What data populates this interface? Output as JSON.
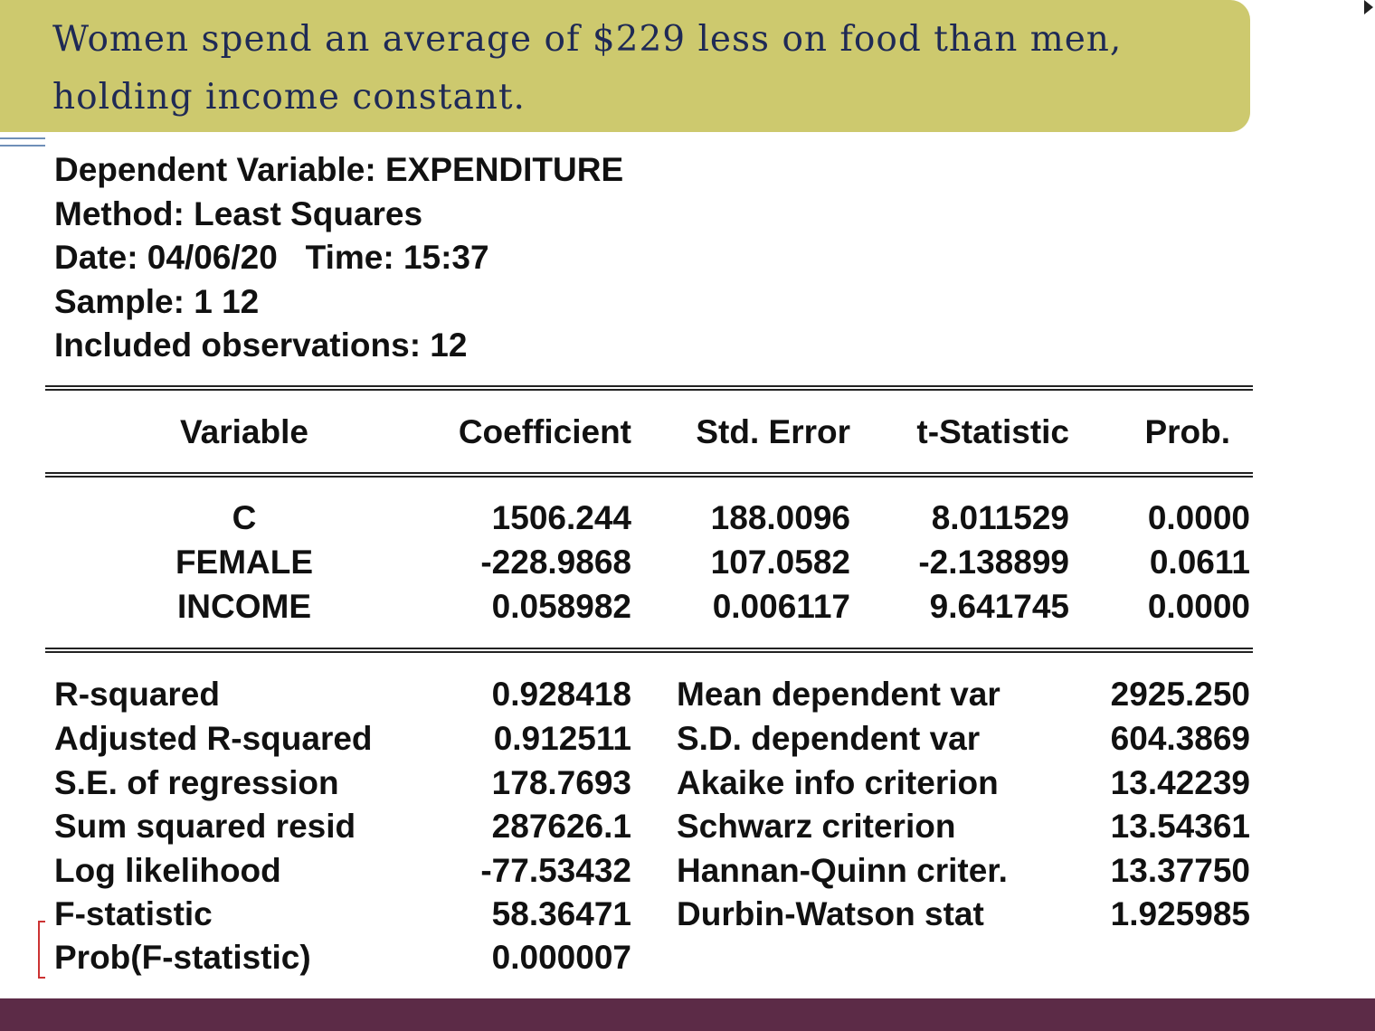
{
  "banner": {
    "text": "Women spend an average of $229 less on food than men, holding income constant."
  },
  "output": {
    "header": [
      "Dependent Variable: EXPENDITURE",
      "Method: Least Squares",
      "Date: 04/06/20   Time: 15:37",
      "Sample: 1 12",
      "Included observations: 12"
    ],
    "columns": [
      "Variable",
      "Coefficient",
      "Std. Error",
      "t-Statistic",
      "Prob."
    ],
    "rows": [
      {
        "variable": "C",
        "coefficient": "1506.244",
        "std_error": "188.0096",
        "t_statistic": "8.011529",
        "prob": "0.0000"
      },
      {
        "variable": "FEMALE",
        "coefficient": "-228.9868",
        "std_error": "107.0582",
        "t_statistic": "-2.138899",
        "prob": "0.0611"
      },
      {
        "variable": "INCOME",
        "coefficient": "0.058982",
        "std_error": "0.006117",
        "t_statistic": "9.641745",
        "prob": "0.0000"
      }
    ],
    "stats_left": [
      {
        "label": "R-squared",
        "value": "0.928418"
      },
      {
        "label": "Adjusted R-squared",
        "value": "0.912511"
      },
      {
        "label": "S.E. of regression",
        "value": "178.7693"
      },
      {
        "label": "Sum squared resid",
        "value": "287626.1"
      },
      {
        "label": "Log likelihood",
        "value": "-77.53432"
      },
      {
        "label": "F-statistic",
        "value": "58.36471"
      },
      {
        "label": "Prob(F-statistic)",
        "value": "0.000007"
      }
    ],
    "stats_right": [
      {
        "label": "Mean dependent var",
        "value": "2925.250"
      },
      {
        "label": "S.D. dependent var",
        "value": "604.3869"
      },
      {
        "label": "Akaike info criterion",
        "value": "13.42239"
      },
      {
        "label": "Schwarz criterion",
        "value": "13.54361"
      },
      {
        "label": "Hannan-Quinn criter.",
        "value": "13.37750"
      },
      {
        "label": "Durbin-Watson stat",
        "value": "1.925985"
      }
    ]
  },
  "colors": {
    "banner": "#cdc96e",
    "banner_text": "#1f2a55",
    "footer": "#5c2b47"
  }
}
